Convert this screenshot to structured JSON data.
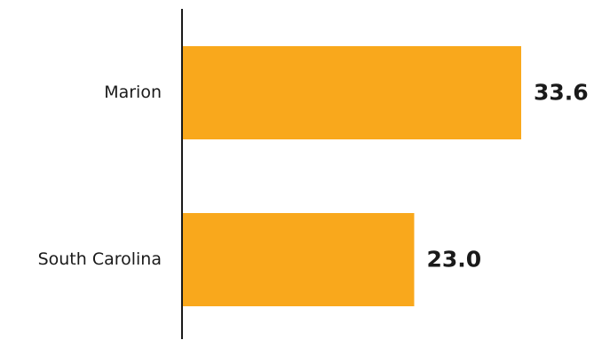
{
  "chart_data": {
    "type": "bar",
    "orientation": "horizontal",
    "categories": [
      "Marion",
      "South Carolina"
    ],
    "values": [
      33.6,
      23.0
    ],
    "value_labels": [
      "33.6",
      "23.0"
    ],
    "bar_color": "#F9A81C",
    "axis_color": "#1a1a1a",
    "title": "",
    "xlabel": "",
    "ylabel": "",
    "grid": false,
    "legend": "none"
  }
}
